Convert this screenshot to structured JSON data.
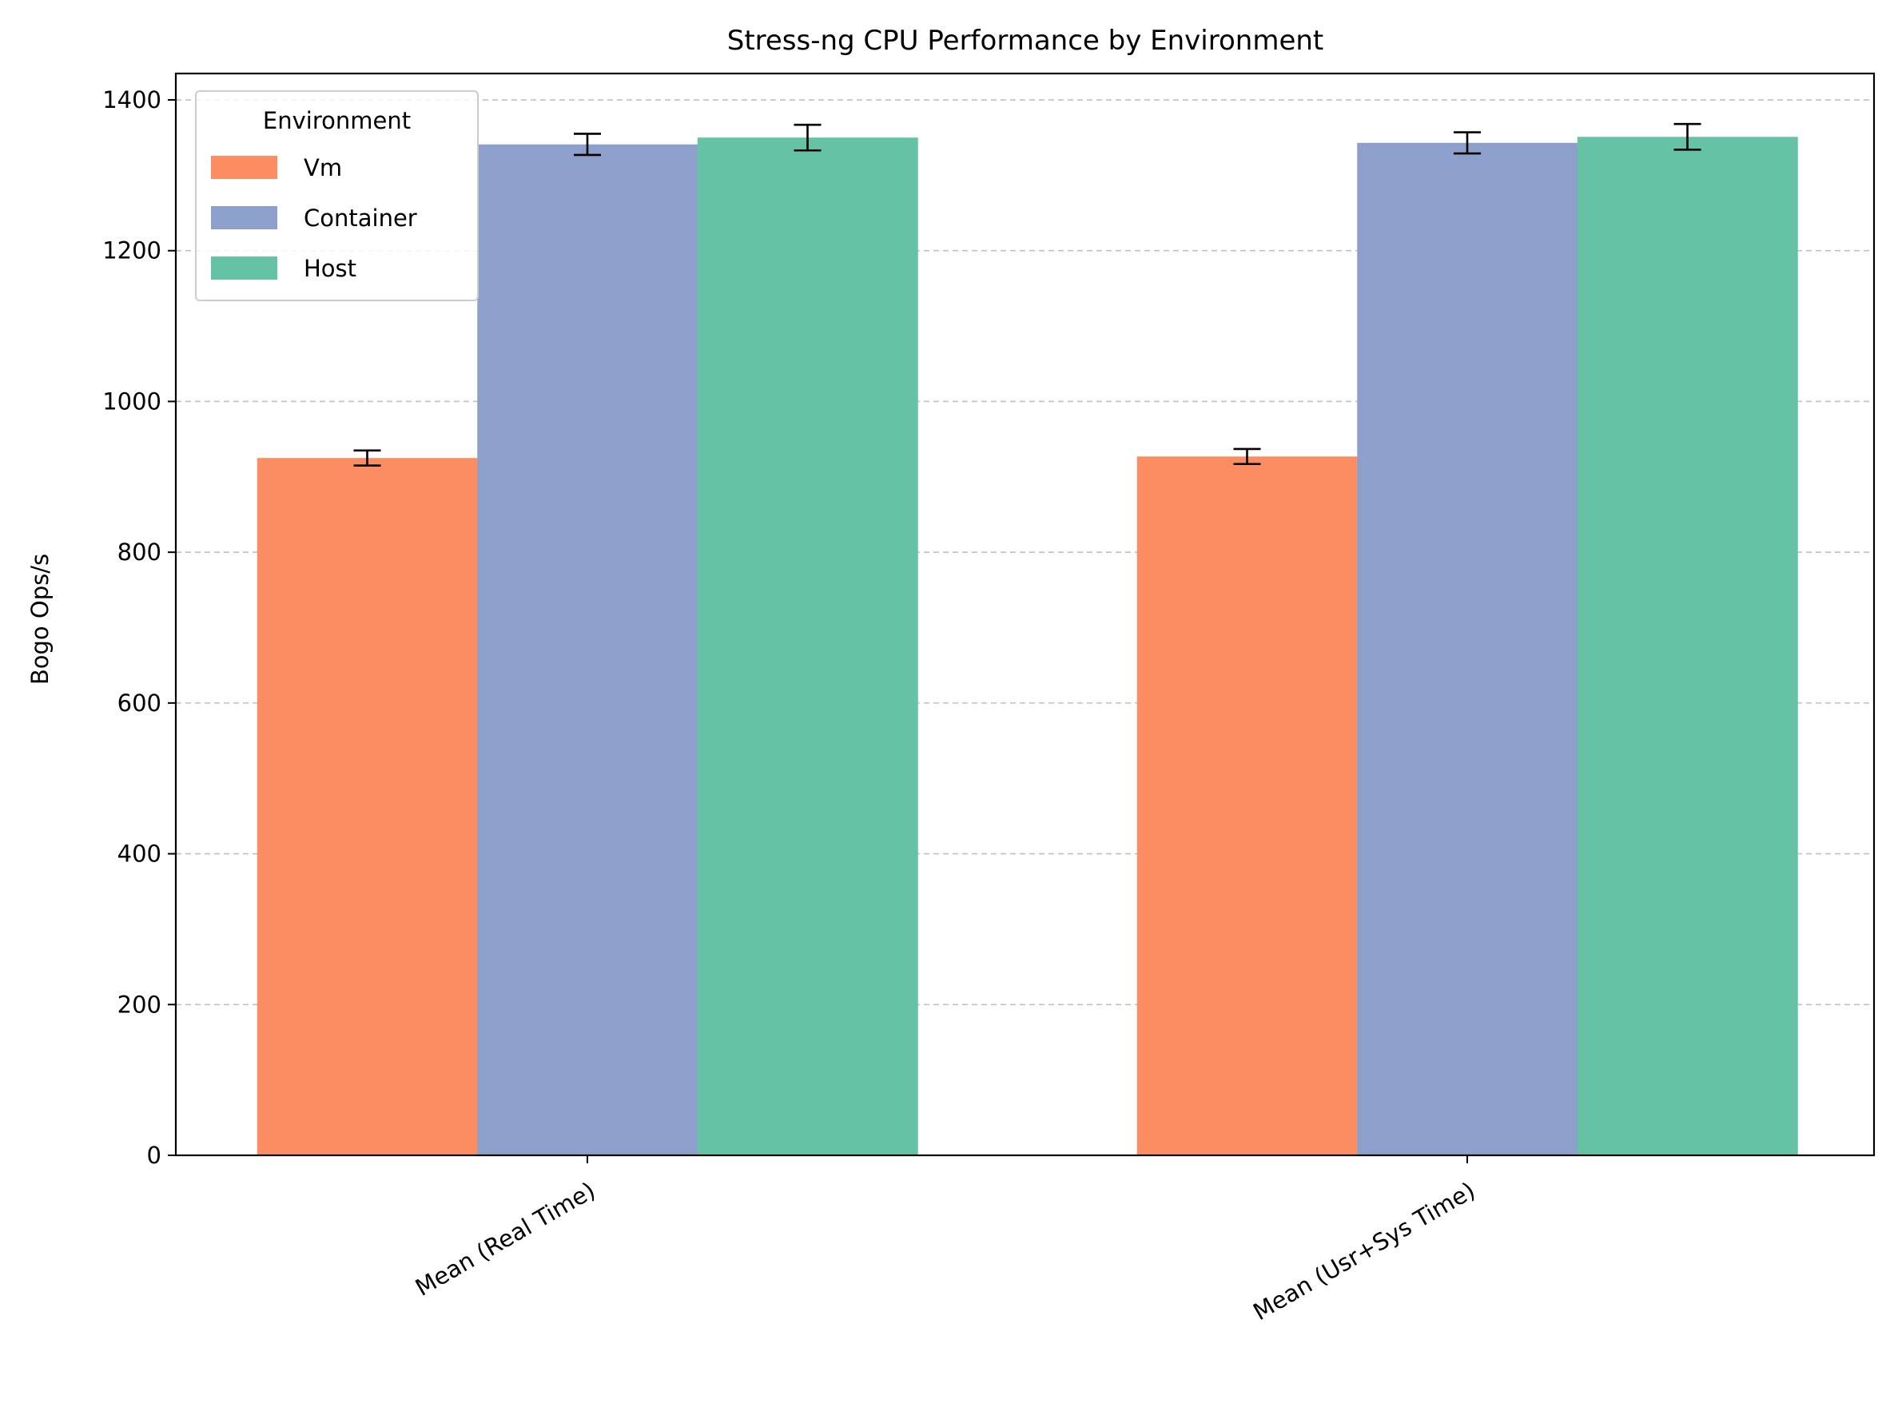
{
  "chart_data": {
    "type": "bar",
    "title": "Stress-ng CPU Performance by Environment",
    "xlabel": "",
    "ylabel": "Bogo Ops/s",
    "ylim": [
      0,
      1435
    ],
    "yticks": [
      0,
      200,
      400,
      600,
      800,
      1000,
      1200,
      1400
    ],
    "grid": "y-dashed",
    "categories": [
      "Mean (Real Time)",
      "Mean (Usr+Sys Time)"
    ],
    "legend": {
      "title": "Environment",
      "position": "top-left"
    },
    "series": [
      {
        "name": "Vm",
        "color": "#fc8d62",
        "values": [
          925,
          927
        ],
        "errors": [
          10,
          10
        ]
      },
      {
        "name": "Container",
        "color": "#8da0cb",
        "values": [
          1341,
          1343
        ],
        "errors": [
          14,
          14
        ]
      },
      {
        "name": "Host",
        "color": "#66c2a5",
        "values": [
          1350,
          1351
        ],
        "errors": [
          17,
          17
        ]
      }
    ]
  }
}
